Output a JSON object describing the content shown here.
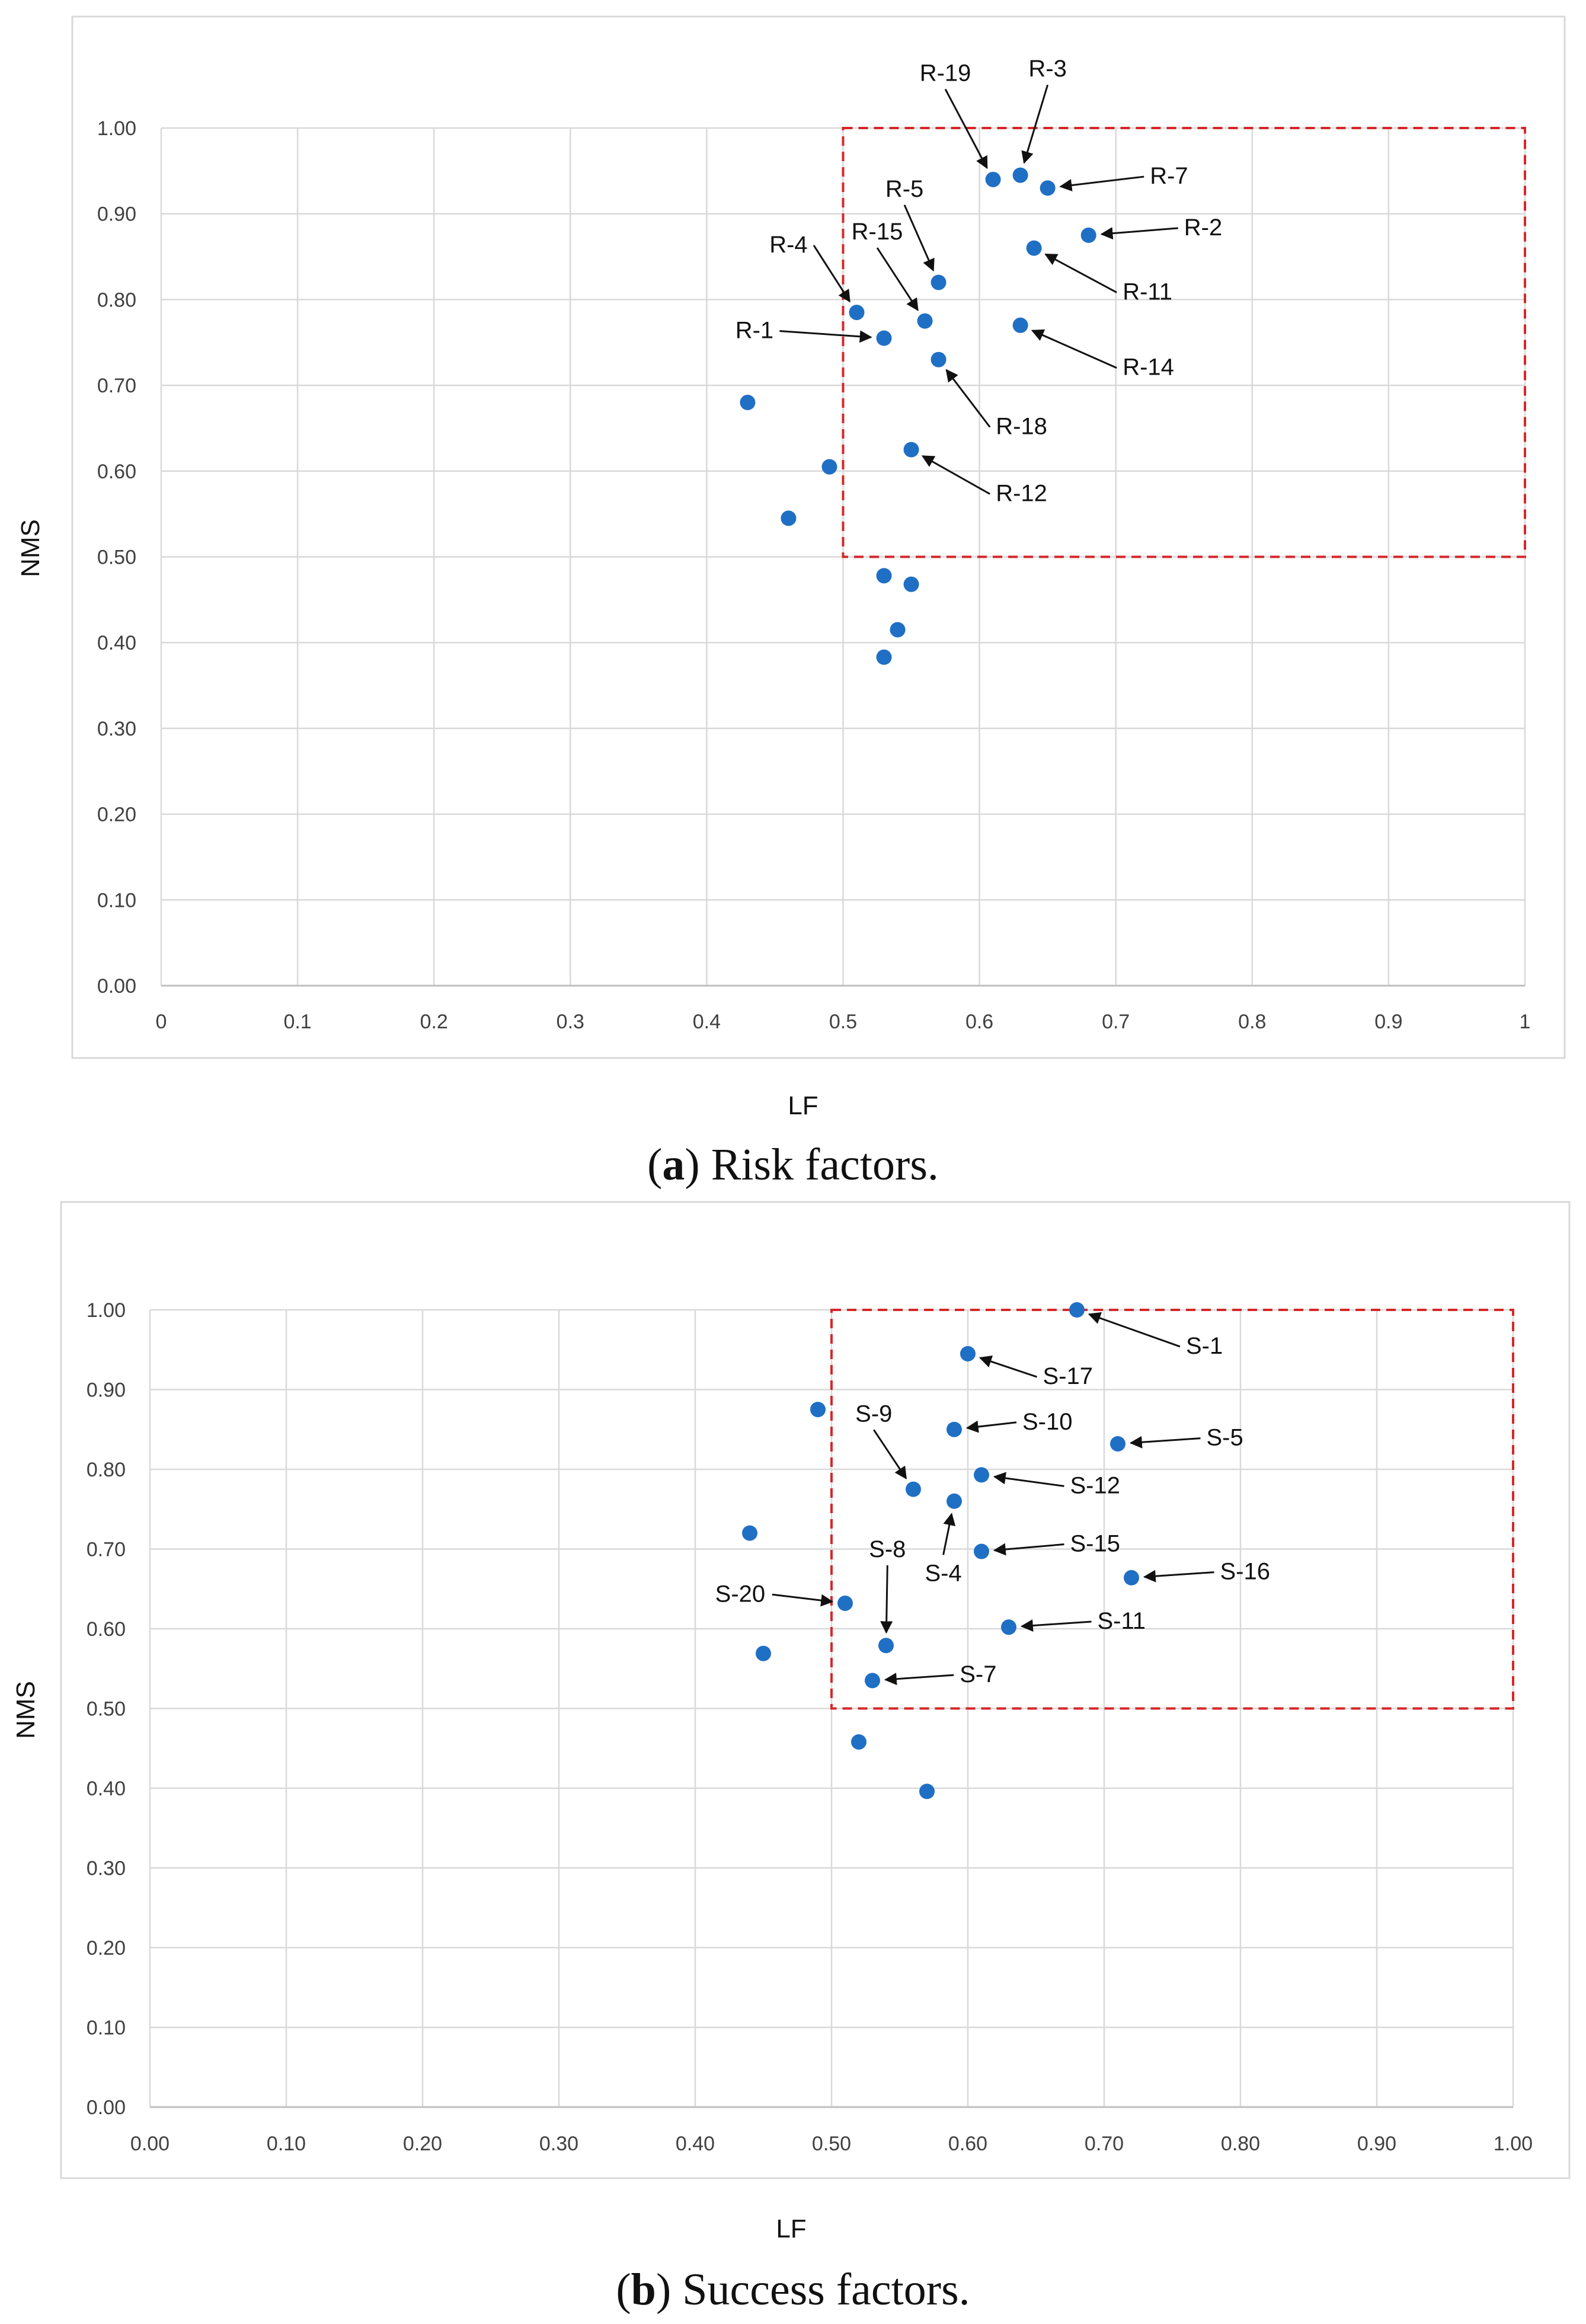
{
  "chart_data": [
    {
      "type": "scatter",
      "panel": "a",
      "caption_letter": "a",
      "caption_text": " Risk factors.",
      "xlabel": "LF",
      "ylabel": "NMS",
      "xlim": [
        0,
        1
      ],
      "ylim": [
        0,
        1
      ],
      "x_ticks": [
        "0",
        "0.1",
        "0.2",
        "0.3",
        "0.4",
        "0.5",
        "0.6",
        "0.7",
        "0.8",
        "0.9",
        "1"
      ],
      "y_ticks": [
        "0.00",
        "0.10",
        "0.20",
        "0.30",
        "0.40",
        "0.50",
        "0.60",
        "0.70",
        "0.80",
        "0.90",
        "1.00"
      ],
      "grid": true,
      "marker_color": "#1f6fc5",
      "highlight_region": {
        "x": [
          0.5,
          1.0
        ],
        "y": [
          0.5,
          1.0
        ],
        "color": "#d62728",
        "style": "dashed"
      },
      "points": [
        {
          "x": 0.61,
          "y": 0.94
        },
        {
          "x": 0.63,
          "y": 0.945
        },
        {
          "x": 0.65,
          "y": 0.93
        },
        {
          "x": 0.68,
          "y": 0.875
        },
        {
          "x": 0.64,
          "y": 0.86
        },
        {
          "x": 0.57,
          "y": 0.82
        },
        {
          "x": 0.51,
          "y": 0.785
        },
        {
          "x": 0.56,
          "y": 0.775
        },
        {
          "x": 0.53,
          "y": 0.755
        },
        {
          "x": 0.63,
          "y": 0.77
        },
        {
          "x": 0.57,
          "y": 0.73
        },
        {
          "x": 0.55,
          "y": 0.625
        },
        {
          "x": 0.43,
          "y": 0.68
        },
        {
          "x": 0.49,
          "y": 0.605
        },
        {
          "x": 0.46,
          "y": 0.545
        },
        {
          "x": 0.53,
          "y": 0.478
        },
        {
          "x": 0.55,
          "y": 0.468
        },
        {
          "x": 0.54,
          "y": 0.415
        },
        {
          "x": 0.53,
          "y": 0.383
        }
      ],
      "annotations": [
        {
          "label": "R-19",
          "point": [
            0.61,
            0.94
          ],
          "text_at": [
            0.575,
            1.055
          ],
          "anchor": "middle"
        },
        {
          "label": "R-3",
          "point": [
            0.63,
            0.945
          ],
          "text_at": [
            0.65,
            1.06
          ],
          "anchor": "middle"
        },
        {
          "label": "R-7",
          "point": [
            0.65,
            0.93
          ],
          "text_at": [
            0.725,
            0.935
          ],
          "anchor": "start"
        },
        {
          "label": "R-2",
          "point": [
            0.68,
            0.875
          ],
          "text_at": [
            0.75,
            0.875
          ],
          "anchor": "start"
        },
        {
          "label": "R-5",
          "point": [
            0.57,
            0.82
          ],
          "text_at": [
            0.545,
            0.92
          ],
          "anchor": "middle"
        },
        {
          "label": "R-15",
          "point": [
            0.56,
            0.775
          ],
          "text_at": [
            0.525,
            0.87
          ],
          "anchor": "middle"
        },
        {
          "label": "R-4",
          "point": [
            0.51,
            0.785
          ],
          "text_at": [
            0.46,
            0.855
          ],
          "anchor": "middle"
        },
        {
          "label": "R-11",
          "point": [
            0.64,
            0.86
          ],
          "text_at": [
            0.705,
            0.8
          ],
          "anchor": "start"
        },
        {
          "label": "R-1",
          "point": [
            0.53,
            0.755
          ],
          "text_at": [
            0.435,
            0.755
          ],
          "anchor": "middle"
        },
        {
          "label": "R-14",
          "point": [
            0.63,
            0.77
          ],
          "text_at": [
            0.705,
            0.712
          ],
          "anchor": "start"
        },
        {
          "label": "R-18",
          "point": [
            0.57,
            0.73
          ],
          "text_at": [
            0.612,
            0.643
          ],
          "anchor": "start"
        },
        {
          "label": "R-12",
          "point": [
            0.55,
            0.625
          ],
          "text_at": [
            0.612,
            0.565
          ],
          "anchor": "start"
        }
      ]
    },
    {
      "type": "scatter",
      "panel": "b",
      "caption_letter": "b",
      "caption_text": " Success factors.",
      "xlabel": "LF",
      "ylabel": "NMS",
      "xlim": [
        0,
        1
      ],
      "ylim": [
        0,
        1
      ],
      "x_ticks": [
        "0.00",
        "0.10",
        "0.20",
        "0.30",
        "0.40",
        "0.50",
        "0.60",
        "0.70",
        "0.80",
        "0.90",
        "1.00"
      ],
      "y_ticks": [
        "0.00",
        "0.10",
        "0.20",
        "0.30",
        "0.40",
        "0.50",
        "0.60",
        "0.70",
        "0.80",
        "0.90",
        "1.00"
      ],
      "grid": true,
      "marker_color": "#1f6fc5",
      "highlight_region": {
        "x": [
          0.5,
          1.0
        ],
        "y": [
          0.5,
          1.0
        ],
        "color": "#d62728",
        "style": "dashed"
      },
      "points": [
        {
          "x": 0.68,
          "y": 1.0
        },
        {
          "x": 0.6,
          "y": 0.945
        },
        {
          "x": 0.49,
          "y": 0.875
        },
        {
          "x": 0.59,
          "y": 0.85
        },
        {
          "x": 0.71,
          "y": 0.832
        },
        {
          "x": 0.61,
          "y": 0.793
        },
        {
          "x": 0.56,
          "y": 0.775
        },
        {
          "x": 0.59,
          "y": 0.76
        },
        {
          "x": 0.44,
          "y": 0.72
        },
        {
          "x": 0.61,
          "y": 0.697
        },
        {
          "x": 0.72,
          "y": 0.664
        },
        {
          "x": 0.51,
          "y": 0.632
        },
        {
          "x": 0.63,
          "y": 0.602
        },
        {
          "x": 0.54,
          "y": 0.579
        },
        {
          "x": 0.45,
          "y": 0.569
        },
        {
          "x": 0.53,
          "y": 0.535
        },
        {
          "x": 0.52,
          "y": 0.458
        },
        {
          "x": 0.57,
          "y": 0.396
        }
      ],
      "annotations": [
        {
          "label": "S-1",
          "point": [
            0.68,
            1.0
          ],
          "text_at": [
            0.76,
            0.945
          ],
          "anchor": "start"
        },
        {
          "label": "S-17",
          "point": [
            0.6,
            0.945
          ],
          "text_at": [
            0.655,
            0.907
          ],
          "anchor": "start"
        },
        {
          "label": "S-10",
          "point": [
            0.59,
            0.85
          ],
          "text_at": [
            0.64,
            0.85
          ],
          "anchor": "start"
        },
        {
          "label": "S-5",
          "point": [
            0.71,
            0.832
          ],
          "text_at": [
            0.775,
            0.83
          ],
          "anchor": "start"
        },
        {
          "label": "S-9",
          "point": [
            0.56,
            0.775
          ],
          "text_at": [
            0.531,
            0.86
          ],
          "anchor": "middle"
        },
        {
          "label": "S-12",
          "point": [
            0.61,
            0.793
          ],
          "text_at": [
            0.675,
            0.77
          ],
          "anchor": "start"
        },
        {
          "label": "S-4",
          "point": [
            0.59,
            0.76
          ],
          "text_at": [
            0.582,
            0.66
          ],
          "anchor": "middle"
        },
        {
          "label": "S-15",
          "point": [
            0.61,
            0.697
          ],
          "text_at": [
            0.675,
            0.697
          ],
          "anchor": "start"
        },
        {
          "label": "S-16",
          "point": [
            0.72,
            0.664
          ],
          "text_at": [
            0.785,
            0.662
          ],
          "anchor": "start"
        },
        {
          "label": "S-8",
          "point": [
            0.54,
            0.579
          ],
          "text_at": [
            0.541,
            0.69
          ],
          "anchor": "middle"
        },
        {
          "label": "S-20",
          "point": [
            0.51,
            0.632
          ],
          "text_at": [
            0.433,
            0.634
          ],
          "anchor": "middle"
        },
        {
          "label": "S-11",
          "point": [
            0.63,
            0.602
          ],
          "text_at": [
            0.695,
            0.6
          ],
          "anchor": "start"
        },
        {
          "label": "S-7",
          "point": [
            0.53,
            0.535
          ],
          "text_at": [
            0.594,
            0.533
          ],
          "anchor": "start"
        }
      ]
    }
  ]
}
